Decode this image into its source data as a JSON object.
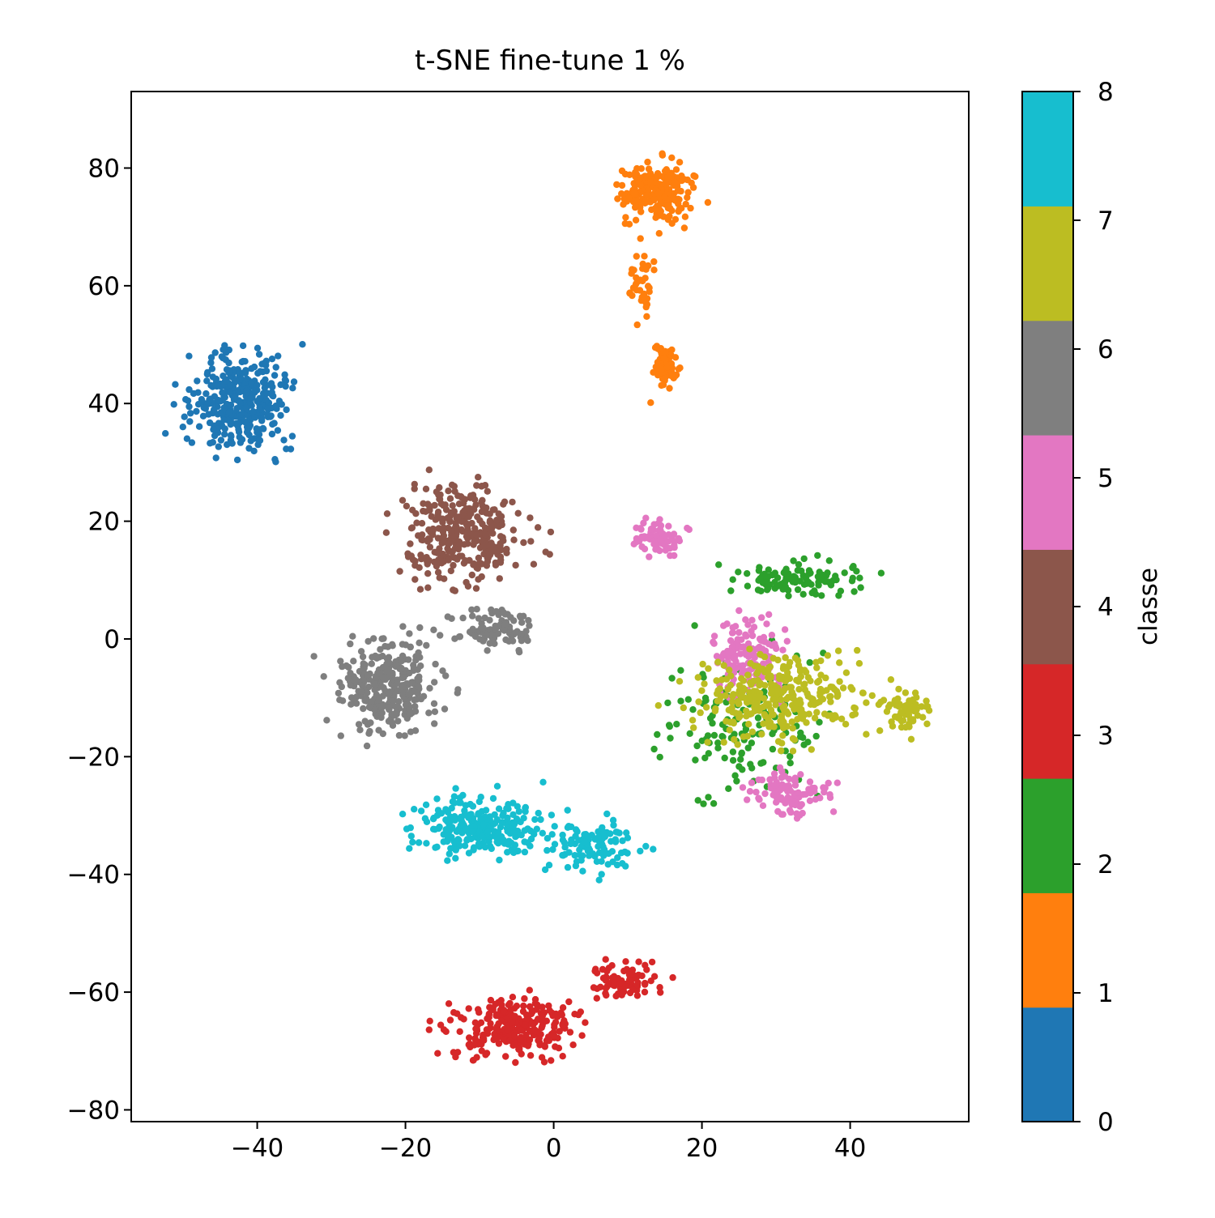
{
  "chart_data": {
    "type": "scatter",
    "title": "t-SNE fine-tune 1 %",
    "xlabel": "",
    "ylabel": "",
    "xlim": [
      -57,
      56
    ],
    "ylim": [
      -82,
      93
    ],
    "xticks": [
      -40,
      -20,
      0,
      20,
      40
    ],
    "yticks": [
      -80,
      -60,
      -40,
      -20,
      0,
      20,
      40,
      60,
      80
    ],
    "grid": false,
    "colorbar": {
      "label": "classe",
      "range": [
        0,
        8
      ],
      "ticks": [
        0,
        1,
        2,
        3,
        4,
        5,
        6,
        7,
        8
      ],
      "colors": [
        "#1f77b4",
        "#ff7f0e",
        "#2ca02c",
        "#d62728",
        "#8c564b",
        "#e377c2",
        "#7f7f7f",
        "#bcbd22",
        "#17becf"
      ]
    },
    "clusters": [
      {
        "class": 0,
        "center": [
          -42,
          40
        ],
        "spread": [
          6,
          7
        ],
        "count": 360
      },
      {
        "class": 1,
        "center": [
          14,
          76
        ],
        "spread": [
          4,
          4
        ],
        "count": 220
      },
      {
        "class": 1,
        "center": [
          12,
          60
        ],
        "spread": [
          1.5,
          5
        ],
        "count": 40
      },
      {
        "class": 1,
        "center": [
          15,
          46
        ],
        "spread": [
          1.6,
          3
        ],
        "count": 70
      },
      {
        "class": 2,
        "center": [
          33,
          10
        ],
        "spread": [
          7,
          2.5
        ],
        "count": 110
      },
      {
        "class": 2,
        "center": [
          25,
          -15
        ],
        "spread": [
          10,
          10
        ],
        "count": 140
      },
      {
        "class": 3,
        "center": [
          -5,
          -66
        ],
        "spread": [
          7,
          4
        ],
        "count": 260
      },
      {
        "class": 3,
        "center": [
          10,
          -58
        ],
        "spread": [
          4,
          3
        ],
        "count": 80
      },
      {
        "class": 4,
        "center": [
          -12,
          18
        ],
        "spread": [
          7,
          7
        ],
        "count": 330
      },
      {
        "class": 5,
        "center": [
          26,
          -3
        ],
        "spread": [
          4,
          6
        ],
        "count": 140
      },
      {
        "class": 5,
        "center": [
          32,
          -26
        ],
        "spread": [
          4,
          3
        ],
        "count": 100
      },
      {
        "class": 5,
        "center": [
          14,
          17
        ],
        "spread": [
          2.5,
          3
        ],
        "count": 70
      },
      {
        "class": 6,
        "center": [
          -22,
          -8
        ],
        "spread": [
          6,
          7
        ],
        "count": 310
      },
      {
        "class": 6,
        "center": [
          -8,
          2
        ],
        "spread": [
          5,
          3
        ],
        "count": 90
      },
      {
        "class": 7,
        "center": [
          30,
          -10
        ],
        "spread": [
          10,
          6
        ],
        "count": 310
      },
      {
        "class": 7,
        "center": [
          48,
          -12
        ],
        "spread": [
          2.5,
          2.5
        ],
        "count": 60
      },
      {
        "class": 8,
        "center": [
          -10,
          -32
        ],
        "spread": [
          8,
          4
        ],
        "count": 260
      },
      {
        "class": 8,
        "center": [
          5,
          -35
        ],
        "spread": [
          5,
          4
        ],
        "count": 110
      }
    ]
  }
}
